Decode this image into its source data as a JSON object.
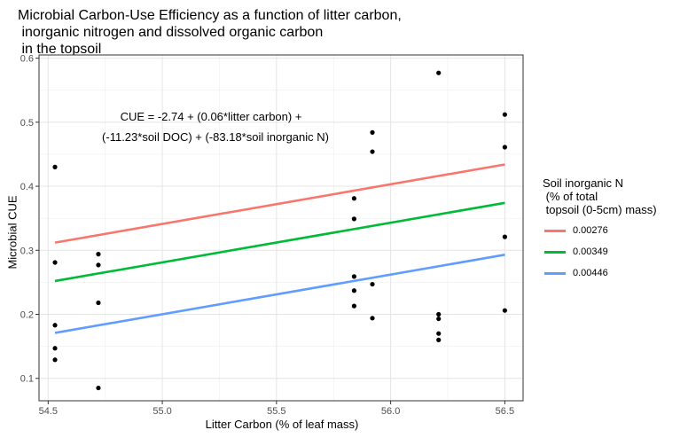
{
  "chart_data": {
    "type": "scatter",
    "title": "Microbial Carbon-Use Efficiency as a function of litter carbon,\n inorganic nitrogen and dissolved organic carbon\n in the topsoil",
    "xlabel": "Litter Carbon (% of leaf mass)",
    "ylabel": "Microbial CUE",
    "xlim": [
      54.46,
      56.58
    ],
    "ylim": [
      0.065,
      0.605
    ],
    "xticks": [
      54.5,
      55.0,
      55.5,
      56.0,
      56.5
    ],
    "xtick_labels": [
      "54.5",
      "55.0",
      "55.5",
      "56.0",
      "56.5"
    ],
    "yticks": [
      0.1,
      0.2,
      0.3,
      0.4,
      0.5,
      0.6
    ],
    "ytick_labels": [
      "0.1",
      "0.2",
      "0.3",
      "0.4",
      "0.5",
      "0.6"
    ],
    "grid": true,
    "annotation": [
      "CUE = -2.74 + (0.06*litter carbon) +",
      "(-11.23*soil DOC) + (-83.18*soil inorganic N)"
    ],
    "points": [
      {
        "x": 54.53,
        "y": 0.43
      },
      {
        "x": 54.53,
        "y": 0.281
      },
      {
        "x": 54.53,
        "y": 0.183
      },
      {
        "x": 54.53,
        "y": 0.147
      },
      {
        "x": 54.53,
        "y": 0.129
      },
      {
        "x": 54.72,
        "y": 0.294
      },
      {
        "x": 54.72,
        "y": 0.277
      },
      {
        "x": 54.72,
        "y": 0.218
      },
      {
        "x": 54.72,
        "y": 0.085
      },
      {
        "x": 55.84,
        "y": 0.381
      },
      {
        "x": 55.84,
        "y": 0.349
      },
      {
        "x": 55.84,
        "y": 0.259
      },
      {
        "x": 55.84,
        "y": 0.237
      },
      {
        "x": 55.84,
        "y": 0.213
      },
      {
        "x": 55.92,
        "y": 0.484
      },
      {
        "x": 55.92,
        "y": 0.454
      },
      {
        "x": 55.92,
        "y": 0.247
      },
      {
        "x": 55.92,
        "y": 0.194
      },
      {
        "x": 56.21,
        "y": 0.577
      },
      {
        "x": 56.21,
        "y": 0.2
      },
      {
        "x": 56.21,
        "y": 0.193
      },
      {
        "x": 56.21,
        "y": 0.17
      },
      {
        "x": 56.21,
        "y": 0.16
      },
      {
        "x": 56.5,
        "y": 0.512
      },
      {
        "x": 56.5,
        "y": 0.461
      },
      {
        "x": 56.5,
        "y": 0.321
      },
      {
        "x": 56.5,
        "y": 0.206
      }
    ],
    "legend": {
      "title": "Soil inorganic N\n (% of total\n topsoil (0-5cm) mass)",
      "placement": "right"
    },
    "series": [
      {
        "name": "0.00276",
        "color": "#F8766D",
        "x": [
          54.53,
          56.5
        ],
        "y": [
          0.312,
          0.434
        ]
      },
      {
        "name": "0.00349",
        "color": "#00BA38",
        "x": [
          54.53,
          56.5
        ],
        "y": [
          0.252,
          0.374
        ]
      },
      {
        "name": "0.00446",
        "color": "#619CFF",
        "x": [
          54.53,
          56.5
        ],
        "y": [
          0.171,
          0.293
        ]
      }
    ]
  }
}
